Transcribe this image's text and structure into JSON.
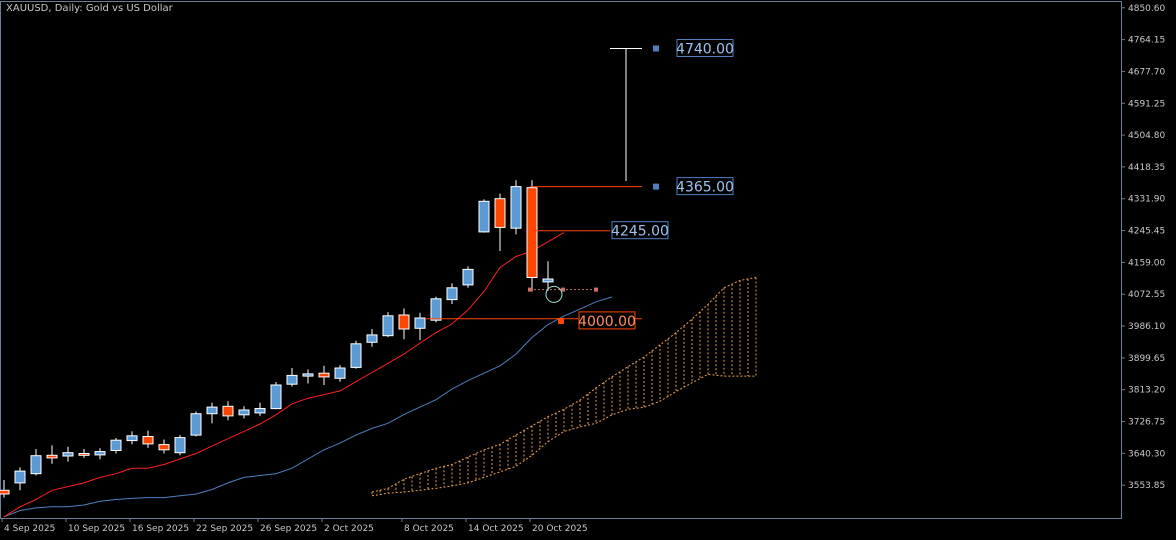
{
  "header": {
    "title": "XAUUSD, Daily:  Gold vs US Dollar"
  },
  "colors": {
    "background": "#000000",
    "frame": "#6b7f99",
    "axis_text": "#c8c8c8",
    "bull": "#5b9bd5",
    "bear": "#ff4500",
    "tenkan": "#ff2020",
    "kijun": "#4f7fc0",
    "cloud": "#f0a050",
    "label_blue": "#4f7fc0",
    "label_red": "#ff4500"
  },
  "chart_data": {
    "type": "candlestick",
    "symbol": "XAUUSD",
    "timeframe": "Daily",
    "description": "Gold vs US Dollar",
    "ylim": [
      3467.4,
      4850.0
    ],
    "y_ticks": [
      "4850.60",
      "4764.15",
      "4677.70",
      "4591.25",
      "4504.80",
      "4418.35",
      "4331.90",
      "4245.45",
      "4159.00",
      "4072.55",
      "3986.10",
      "3899.65",
      "3813.20",
      "3726.75",
      "3640.30",
      "3553.85"
    ],
    "x_ticks": [
      "4 Sep 2025",
      "10 Sep 2025",
      "16 Sep 2025",
      "22 Sep 2025",
      "26 Sep 2025",
      "2 Oct 2025",
      "8 Oct 2025",
      "14 Oct 2025",
      "20 Oct 2025"
    ],
    "candles": [
      {
        "o": 3540,
        "h": 3568,
        "l": 3520,
        "c": 3530
      },
      {
        "o": 3560,
        "h": 3602,
        "l": 3540,
        "c": 3592
      },
      {
        "o": 3585,
        "h": 3652,
        "l": 3580,
        "c": 3634
      },
      {
        "o": 3635,
        "h": 3662,
        "l": 3612,
        "c": 3628
      },
      {
        "o": 3633,
        "h": 3658,
        "l": 3618,
        "c": 3642
      },
      {
        "o": 3640,
        "h": 3652,
        "l": 3628,
        "c": 3635
      },
      {
        "o": 3636,
        "h": 3654,
        "l": 3624,
        "c": 3645
      },
      {
        "o": 3648,
        "h": 3682,
        "l": 3640,
        "c": 3676
      },
      {
        "o": 3675,
        "h": 3700,
        "l": 3665,
        "c": 3688
      },
      {
        "o": 3686,
        "h": 3702,
        "l": 3655,
        "c": 3666
      },
      {
        "o": 3664,
        "h": 3678,
        "l": 3640,
        "c": 3650
      },
      {
        "o": 3642,
        "h": 3690,
        "l": 3635,
        "c": 3683
      },
      {
        "o": 3690,
        "h": 3754,
        "l": 3686,
        "c": 3748
      },
      {
        "o": 3748,
        "h": 3778,
        "l": 3722,
        "c": 3766
      },
      {
        "o": 3768,
        "h": 3782,
        "l": 3730,
        "c": 3742
      },
      {
        "o": 3745,
        "h": 3768,
        "l": 3735,
        "c": 3758
      },
      {
        "o": 3750,
        "h": 3778,
        "l": 3742,
        "c": 3762
      },
      {
        "o": 3762,
        "h": 3834,
        "l": 3760,
        "c": 3826
      },
      {
        "o": 3828,
        "h": 3872,
        "l": 3822,
        "c": 3852
      },
      {
        "o": 3850,
        "h": 3868,
        "l": 3830,
        "c": 3856
      },
      {
        "o": 3858,
        "h": 3878,
        "l": 3826,
        "c": 3848
      },
      {
        "o": 3844,
        "h": 3880,
        "l": 3835,
        "c": 3872
      },
      {
        "o": 3874,
        "h": 3946,
        "l": 3870,
        "c": 3938
      },
      {
        "o": 3942,
        "h": 3978,
        "l": 3930,
        "c": 3962
      },
      {
        "o": 3960,
        "h": 4024,
        "l": 3956,
        "c": 4014
      },
      {
        "o": 4016,
        "h": 4034,
        "l": 3950,
        "c": 3978
      },
      {
        "o": 3980,
        "h": 4022,
        "l": 3948,
        "c": 4008
      },
      {
        "o": 4002,
        "h": 4066,
        "l": 3996,
        "c": 4060
      },
      {
        "o": 4058,
        "h": 4102,
        "l": 4046,
        "c": 4090
      },
      {
        "o": 4098,
        "h": 4148,
        "l": 4090,
        "c": 4140
      },
      {
        "o": 4242,
        "h": 4330,
        "l": 4240,
        "c": 4325
      },
      {
        "o": 4332,
        "h": 4346,
        "l": 4190,
        "c": 4254
      },
      {
        "o": 4252,
        "h": 4382,
        "l": 4235,
        "c": 4365
      },
      {
        "o": 4362,
        "h": 4382,
        "l": 4080,
        "c": 4118
      },
      {
        "o": 4106,
        "h": 4162,
        "l": 4082,
        "c": 4114
      }
    ],
    "tenkan_sen": [
      3468,
      3495,
      3515,
      3540,
      3550,
      3560,
      3575,
      3585,
      3600,
      3600,
      3610,
      3625,
      3640,
      3660,
      3680,
      3700,
      3720,
      3745,
      3775,
      3790,
      3800,
      3810,
      3835,
      3860,
      3885,
      3910,
      3940,
      3968,
      3992,
      4030,
      4080,
      4145,
      4175,
      4190,
      4215,
      4240
    ],
    "kijun_sen": [
      3468,
      3485,
      3492,
      3495,
      3495,
      3500,
      3510,
      3515,
      3518,
      3520,
      3520,
      3525,
      3530,
      3542,
      3560,
      3575,
      3580,
      3585,
      3600,
      3625,
      3650,
      3668,
      3690,
      3708,
      3722,
      3746,
      3766,
      3786,
      3815,
      3838,
      3858,
      3878,
      3910,
      3955,
      3990,
      4013,
      4032,
      4052,
      4065
    ],
    "cloud_upper": [
      3535,
      3545,
      3570,
      3585,
      3600,
      3610,
      3630,
      3650,
      3665,
      3690,
      3715,
      3740,
      3760,
      3785,
      3818,
      3848,
      3876,
      3902,
      3935,
      3968,
      4005,
      4045,
      4090,
      4110,
      4118
    ],
    "cloud_lower": [
      3525,
      3532,
      3535,
      3540,
      3545,
      3552,
      3560,
      3575,
      3590,
      3605,
      3635,
      3672,
      3700,
      3712,
      3722,
      3745,
      3760,
      3765,
      3782,
      3808,
      3832,
      3855,
      3850,
      3850,
      3850
    ],
    "levels": [
      {
        "label": "4740.00",
        "value": 4740,
        "style": "blue"
      },
      {
        "label": "4365.00",
        "value": 4365,
        "style": "blue"
      },
      {
        "label": "4245.00",
        "value": 4245,
        "style": "blue"
      },
      {
        "label": "4000.00",
        "value": 4000,
        "style": "red"
      }
    ],
    "grid": false
  }
}
